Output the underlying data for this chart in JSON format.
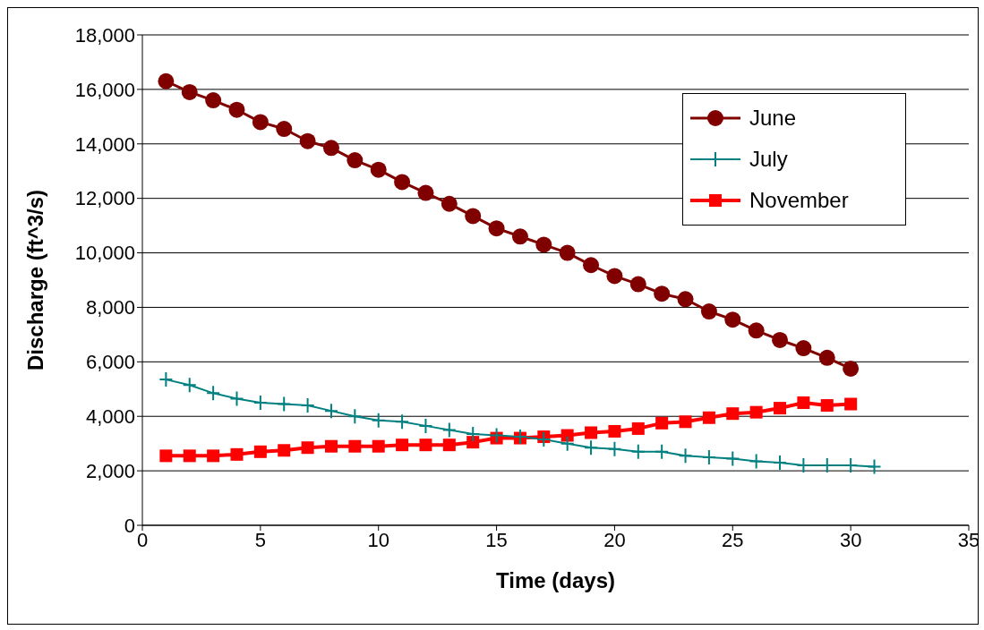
{
  "chart_data": {
    "type": "line",
    "xlabel": "Time (days)",
    "ylabel": "Discharge (ft^3/s)",
    "x": [
      1,
      2,
      3,
      4,
      5,
      6,
      7,
      8,
      9,
      10,
      11,
      12,
      13,
      14,
      15,
      16,
      17,
      18,
      19,
      20,
      21,
      22,
      23,
      24,
      25,
      26,
      27,
      28,
      29,
      30
    ],
    "series": [
      {
        "name": "June",
        "color": "#800000",
        "marker": "circle",
        "values": [
          16300,
          15900,
          15600,
          15250,
          14800,
          14550,
          14100,
          13850,
          13400,
          13050,
          12600,
          12200,
          11800,
          11350,
          10900,
          10600,
          10300,
          10000,
          9550,
          9150,
          8850,
          8500,
          8300,
          7850,
          7550,
          7150,
          6800,
          6500,
          6150,
          5750
        ]
      },
      {
        "name": "July",
        "color": "#008080",
        "marker": "cross",
        "x": [
          1,
          2,
          3,
          4,
          5,
          6,
          7,
          8,
          9,
          10,
          11,
          12,
          13,
          14,
          15,
          16,
          17,
          18,
          19,
          20,
          21,
          22,
          23,
          24,
          25,
          26,
          27,
          28,
          29,
          30,
          31
        ],
        "values": [
          5350,
          5150,
          4850,
          4650,
          4500,
          4450,
          4400,
          4200,
          4000,
          3850,
          3800,
          3650,
          3500,
          3350,
          3300,
          3250,
          3150,
          3000,
          2850,
          2800,
          2700,
          2700,
          2550,
          2500,
          2450,
          2350,
          2300,
          2200,
          2200,
          2200,
          2150
        ]
      },
      {
        "name": "November",
        "color": "#ff0000",
        "marker": "square",
        "values": [
          2550,
          2550,
          2550,
          2600,
          2700,
          2750,
          2850,
          2900,
          2900,
          2900,
          2950,
          2950,
          2950,
          3050,
          3200,
          3200,
          3250,
          3300,
          3400,
          3450,
          3550,
          3750,
          3800,
          3950,
          4100,
          4150,
          4300,
          4500,
          4400,
          4450
        ]
      }
    ],
    "xlim": [
      0,
      35
    ],
    "xticks": [
      0,
      5,
      10,
      15,
      20,
      25,
      30,
      35
    ],
    "ylim": [
      0,
      18000
    ],
    "yticks": [
      0,
      {
        "value": 2000,
        "label": "2,000"
      },
      {
        "value": 4000,
        "label": "4,000"
      },
      {
        "value": 6000,
        "label": "6,000"
      },
      {
        "value": 8000,
        "label": "8,000"
      },
      {
        "value": 10000,
        "label": "10,000"
      },
      {
        "value": 12000,
        "label": "12,000"
      },
      {
        "value": 14000,
        "label": "14,000"
      },
      {
        "value": 16000,
        "label": "16,000"
      },
      {
        "value": 18000,
        "label": "18,000"
      }
    ],
    "grid": "y",
    "legend": "top right",
    "line_style": "solid"
  }
}
